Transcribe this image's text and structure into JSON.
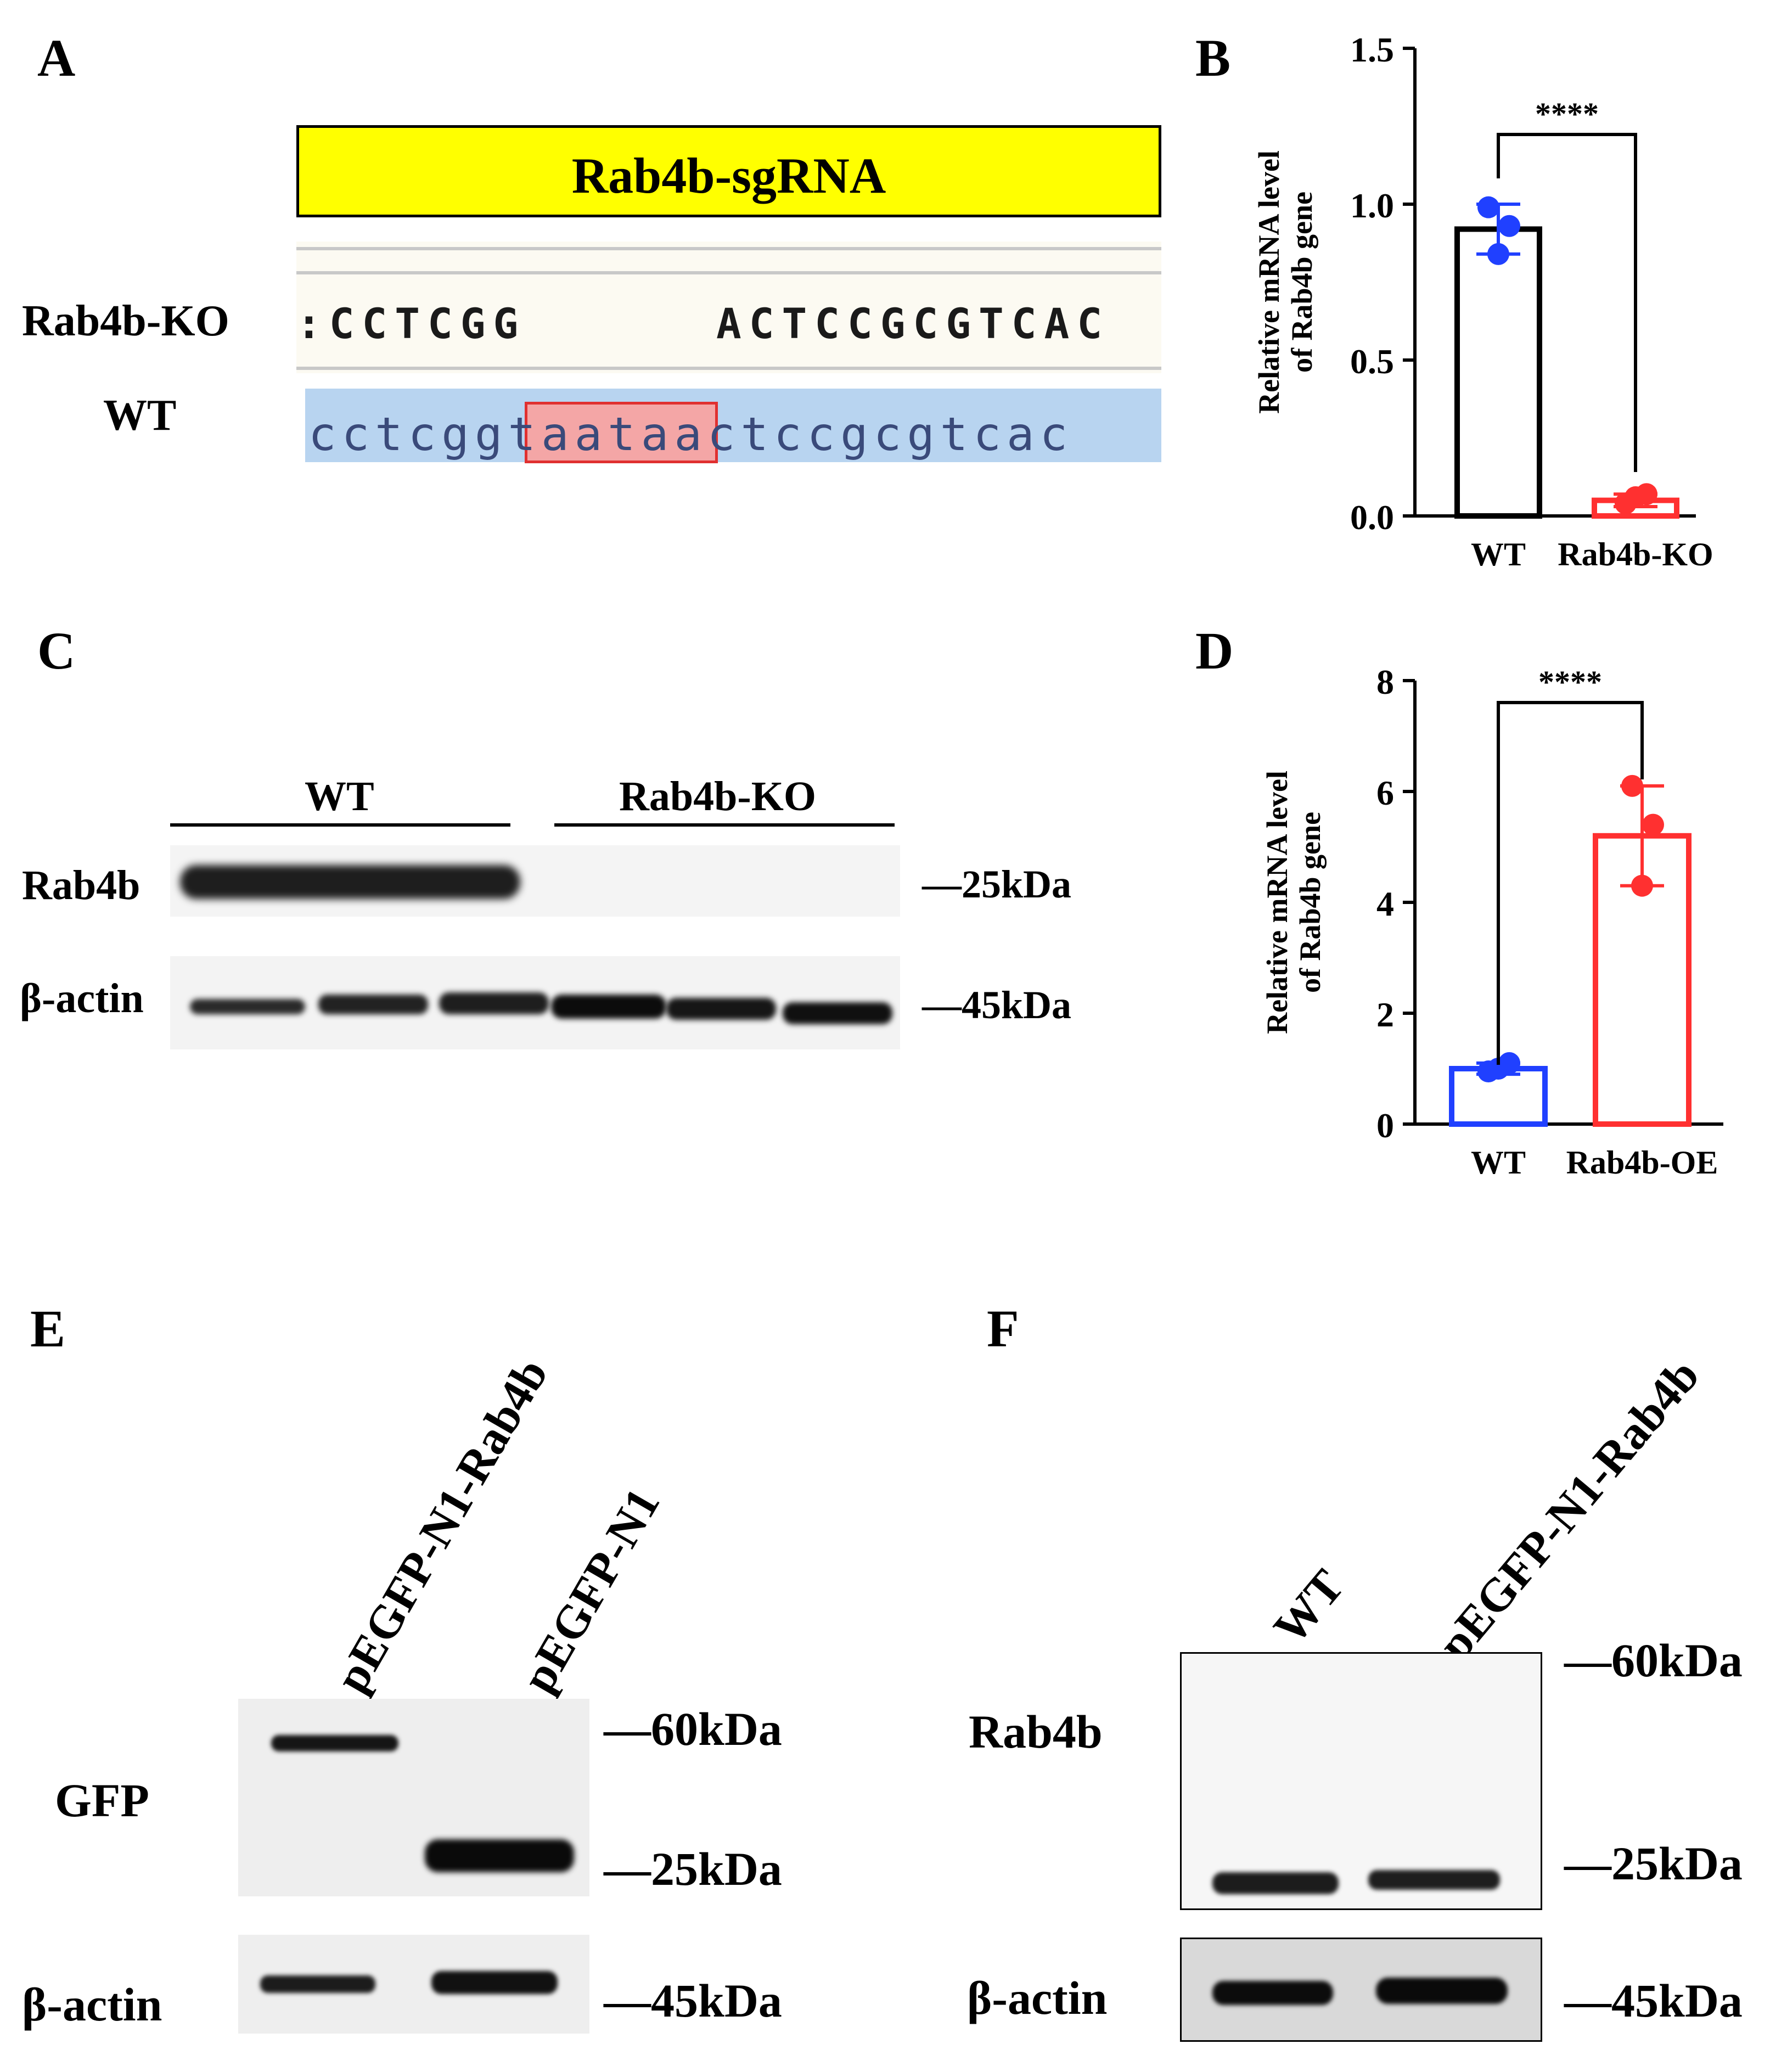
{
  "panels": {
    "A": "A",
    "B": "B",
    "C": "C",
    "D": "D",
    "E": "E",
    "F": "F"
  },
  "panel_a": {
    "sgrna_label": "Rab4b-sgRNA",
    "ko_label": "Rab4b-KO",
    "wt_label": "WT",
    "ko_seq_left": "CCTCGG",
    "ko_seq_right": "ACTCCGCGTCAC",
    "wt_seq_left": "cctcgg",
    "wt_seq_deleted": "taata",
    "wt_seq_right": "actccgcgtcac",
    "colors": {
      "sgrna_box": "#ffff00",
      "wt_band": "#b8d4f0",
      "deletion_fill": "#f4a6a6",
      "deletion_border": "#e03030"
    }
  },
  "chart_data": [
    {
      "panel": "B",
      "type": "bar",
      "categories": [
        "WT",
        "Rab4b-KO"
      ],
      "values": [
        0.92,
        0.05
      ],
      "points": [
        [
          0.99,
          0.93,
          0.84
        ],
        [
          0.04,
          0.07,
          0.06
        ]
      ],
      "error": [
        [
          0.84,
          1.0
        ],
        [
          0.03,
          0.07
        ]
      ],
      "ylabel_lines": [
        "Relative mRNA level",
        "of Rab4b gene"
      ],
      "ylim": [
        0,
        1.5
      ],
      "ticks": [
        "0.0",
        "0.5",
        "1.0",
        "1.5"
      ],
      "significance": "****",
      "colors": {
        "bars": [
          "#000000",
          "#ff3030"
        ],
        "points": [
          "#2040ff",
          "#ff3030"
        ]
      }
    },
    {
      "panel": "D",
      "type": "bar",
      "categories": [
        "WT",
        "Rab4b-OE"
      ],
      "values": [
        1.0,
        5.2
      ],
      "points": [
        [
          0.95,
          1.1,
          1.0
        ],
        [
          6.1,
          5.4,
          4.3
        ]
      ],
      "error": [
        [
          0.9,
          1.1
        ],
        [
          4.3,
          6.1
        ]
      ],
      "ylabel_lines": [
        "Relative mRNA level",
        "of Rab4b gene"
      ],
      "ylim": [
        0,
        8
      ],
      "ticks": [
        "0",
        "2",
        "4",
        "6",
        "8"
      ],
      "significance": "****",
      "colors": {
        "bars": [
          "#2040ff",
          "#ff3030"
        ],
        "points": [
          "#2040ff",
          "#ff3030"
        ]
      }
    }
  ],
  "panel_c": {
    "group_wt": "WT",
    "group_ko": "Rab4b-KO",
    "row1_label": "Rab4b",
    "row2_label": "β-actin",
    "marker1": "—25kDa",
    "marker2": "—45kDa"
  },
  "panel_e": {
    "lane1": "pEGFP-N1-Rab4b",
    "lane2": "pEGFP-N1",
    "row1_label": "GFP",
    "row2_label": "β-actin",
    "marker_60": "—60kDa",
    "marker_25": "—25kDa",
    "marker_45": "—45kDa"
  },
  "panel_f": {
    "lane1": "WT",
    "lane2": "pEGFP-N1-Rab4b",
    "row1_label": "Rab4b",
    "row2_label": "β-actin",
    "marker_60": "—60kDa",
    "marker_25": "—25kDa",
    "marker_45": "—45kDa"
  }
}
